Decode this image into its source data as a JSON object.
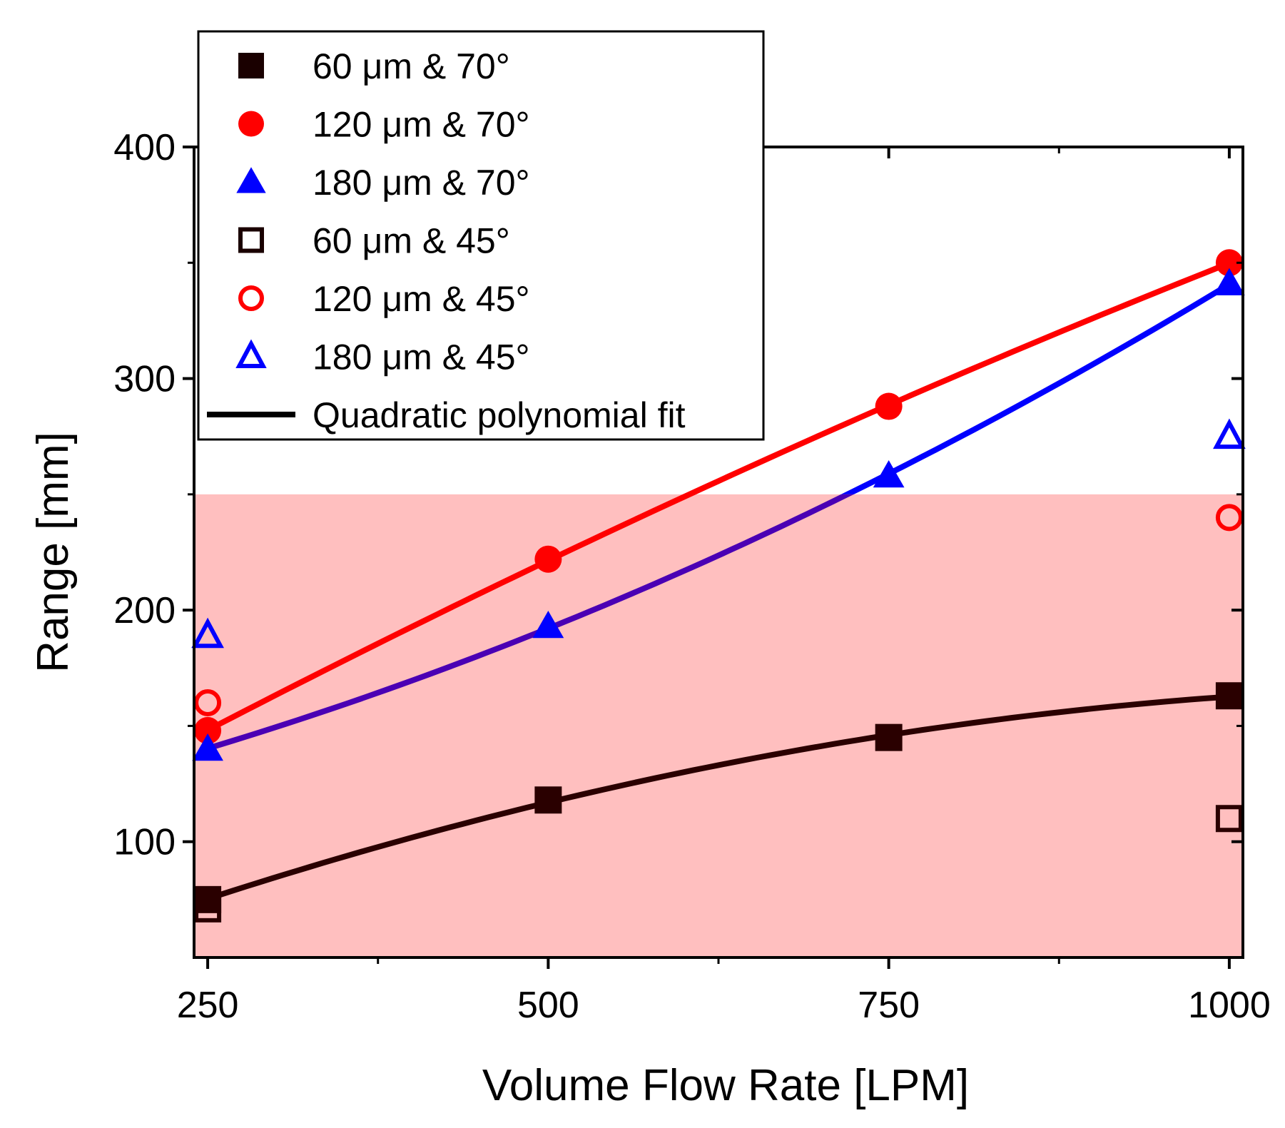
{
  "chart_data": {
    "type": "line",
    "title": "",
    "xlabel": "Volume Flow Rate [LPM]",
    "ylabel": "Range [mm]",
    "xlim": [
      240,
      1010
    ],
    "ylim": [
      50,
      400
    ],
    "xticks": [
      250,
      500,
      750,
      1000
    ],
    "yticks": [
      100,
      200,
      300,
      400
    ],
    "shaded_band": {
      "y_from": 50,
      "y_to": 250,
      "color": "#ffbfbf"
    },
    "legend_position": "top-left",
    "legend": [
      {
        "label": "60 μm & 70°",
        "marker": "square-filled",
        "color": "#1a0000"
      },
      {
        "label": "120 μm & 70°",
        "marker": "circle-filled",
        "color": "#ff0000"
      },
      {
        "label": "180 μm & 70°",
        "marker": "triangle-filled",
        "color": "#0000ff"
      },
      {
        "label": "60 μm & 45°",
        "marker": "square-open",
        "color": "#1a0000"
      },
      {
        "label": "120 μm & 45°",
        "marker": "circle-open",
        "color": "#ff0000"
      },
      {
        "label": "180 μm & 45°",
        "marker": "triangle-open",
        "color": "#0000ff"
      },
      {
        "label": "Quadratic polynomial fit",
        "marker": "line",
        "color": "#000000"
      }
    ],
    "series": [
      {
        "name": "60 μm & 70°",
        "marker": "square-filled",
        "color": "#2a0000",
        "fit": true,
        "x": [
          250,
          500,
          750,
          1000
        ],
        "y": [
          75,
          118,
          145,
          163
        ]
      },
      {
        "name": "120 μm & 70°",
        "marker": "circle-filled",
        "color": "#ff0000",
        "fit": true,
        "x": [
          250,
          500,
          750,
          1000
        ],
        "y": [
          148,
          222,
          288,
          350
        ]
      },
      {
        "name": "180 μm & 70°",
        "marker": "triangle-filled",
        "color": "#0000ff",
        "fit": true,
        "fit_color_in_band": "#4a00b4",
        "x": [
          250,
          500,
          750,
          1000
        ],
        "y": [
          140,
          193,
          258,
          341
        ]
      },
      {
        "name": "60 μm & 45°",
        "marker": "square-open",
        "color": "#2a0000",
        "fit": false,
        "x": [
          250,
          1000
        ],
        "y": [
          71,
          110
        ]
      },
      {
        "name": "120 μm & 45°",
        "marker": "circle-open",
        "color": "#ff0000",
        "fit": false,
        "x": [
          250,
          1000
        ],
        "y": [
          160,
          240
        ]
      },
      {
        "name": "180 μm & 45°",
        "marker": "triangle-open",
        "color": "#0000ff",
        "fit": false,
        "x": [
          250,
          1000
        ],
        "y": [
          189,
          275
        ]
      }
    ]
  }
}
